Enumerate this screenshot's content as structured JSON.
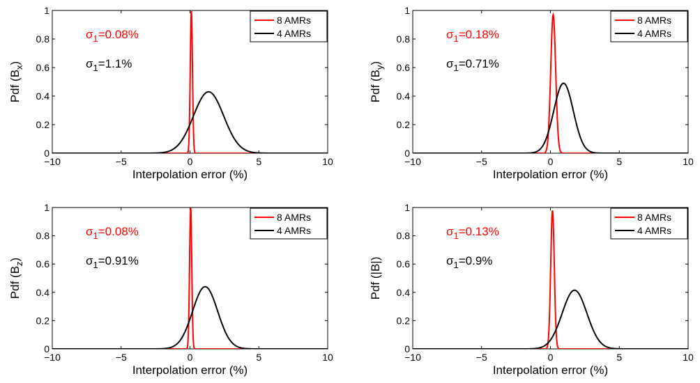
{
  "chart_data": [
    {
      "type": "line",
      "xlabel": "Interpolation error (%)",
      "ylabel_main": "Pdf (B",
      "ylabel_sub": "x",
      "ylabel_tail": ")",
      "xlim": [
        -10,
        10
      ],
      "ylim": [
        0,
        1
      ],
      "xticks": [
        "−10",
        "−5",
        "0",
        "5",
        "10"
      ],
      "yticks": [
        "0",
        "0.2",
        "0.4",
        "0.6",
        "0.8",
        "1"
      ],
      "legend_position": "top-right",
      "annotations": [
        {
          "prefix": "σ",
          "sub": "1",
          "text": "=0.08%",
          "color": "#ff0000"
        },
        {
          "prefix": "σ",
          "sub": "1",
          "text": "=1.1%",
          "color": "#000000"
        }
      ],
      "series": [
        {
          "name": "8 AMRs",
          "color": "#ff0000",
          "mean": 0.1,
          "peak": 1.0,
          "sigma": 0.08
        },
        {
          "name": "4 AMRs",
          "color": "#000000",
          "mean": 1.35,
          "peak": 0.43,
          "sigma": 1.1
        }
      ]
    },
    {
      "type": "line",
      "xlabel": "Interpolation error (%)",
      "ylabel_main": "Pdf (B",
      "ylabel_sub": "y",
      "ylabel_tail": ")",
      "xlim": [
        -10,
        10
      ],
      "ylim": [
        0,
        1
      ],
      "xticks": [
        "−10",
        "−5",
        "0",
        "5",
        "10"
      ],
      "yticks": [
        "0",
        "0.2",
        "0.4",
        "0.6",
        "0.8",
        "1"
      ],
      "legend_position": "top-right",
      "annotations": [
        {
          "prefix": "σ",
          "sub": "1",
          "text": "=0.18%",
          "color": "#ff0000"
        },
        {
          "prefix": "σ",
          "sub": "1",
          "text": "=0.71%",
          "color": "#000000"
        }
      ],
      "series": [
        {
          "name": "8 AMRs",
          "color": "#ff0000",
          "mean": 0.2,
          "peak": 0.97,
          "sigma": 0.18
        },
        {
          "name": "4 AMRs",
          "color": "#000000",
          "mean": 0.95,
          "peak": 0.49,
          "sigma": 0.71
        }
      ]
    },
    {
      "type": "line",
      "xlabel": "Interpolation error (%)",
      "ylabel_main": "Pdf (B",
      "ylabel_sub": "z",
      "ylabel_tail": ")",
      "xlim": [
        -10,
        10
      ],
      "ylim": [
        0,
        1
      ],
      "xticks": [
        "−10",
        "−5",
        "0",
        "5",
        "10"
      ],
      "yticks": [
        "0",
        "0.2",
        "0.4",
        "0.6",
        "0.8",
        "1"
      ],
      "legend_position": "top-right",
      "annotations": [
        {
          "prefix": "σ",
          "sub": "1",
          "text": "=0.08%",
          "color": "#ff0000"
        },
        {
          "prefix": "σ",
          "sub": "1",
          "text": "=0.91%",
          "color": "#000000"
        }
      ],
      "series": [
        {
          "name": "8 AMRs",
          "color": "#ff0000",
          "mean": 0.05,
          "peak": 1.0,
          "sigma": 0.08
        },
        {
          "name": "4 AMRs",
          "color": "#000000",
          "mean": 1.1,
          "peak": 0.44,
          "sigma": 0.91
        }
      ]
    },
    {
      "type": "line",
      "xlabel": "Interpolation error (%)",
      "ylabel_main": "Pdf (|B|)",
      "ylabel_sub": "",
      "ylabel_tail": "",
      "xlim": [
        -10,
        10
      ],
      "ylim": [
        0,
        1
      ],
      "xticks": [
        "−10",
        "−5",
        "0",
        "5",
        "10"
      ],
      "yticks": [
        "0",
        "0.2",
        "0.4",
        "0.6",
        "0.8",
        "1"
      ],
      "legend_position": "top-right",
      "annotations": [
        {
          "prefix": "σ",
          "sub": "1",
          "text": "=0.13%",
          "color": "#ff0000"
        },
        {
          "prefix": "σ",
          "sub": "1",
          "text": "=0.9%",
          "color": "#000000"
        }
      ],
      "series": [
        {
          "name": "8 AMRs",
          "color": "#ff0000",
          "mean": 0.15,
          "peak": 0.98,
          "sigma": 0.13
        },
        {
          "name": "4 AMRs",
          "color": "#000000",
          "mean": 1.75,
          "peak": 0.415,
          "sigma": 0.9
        }
      ]
    }
  ]
}
